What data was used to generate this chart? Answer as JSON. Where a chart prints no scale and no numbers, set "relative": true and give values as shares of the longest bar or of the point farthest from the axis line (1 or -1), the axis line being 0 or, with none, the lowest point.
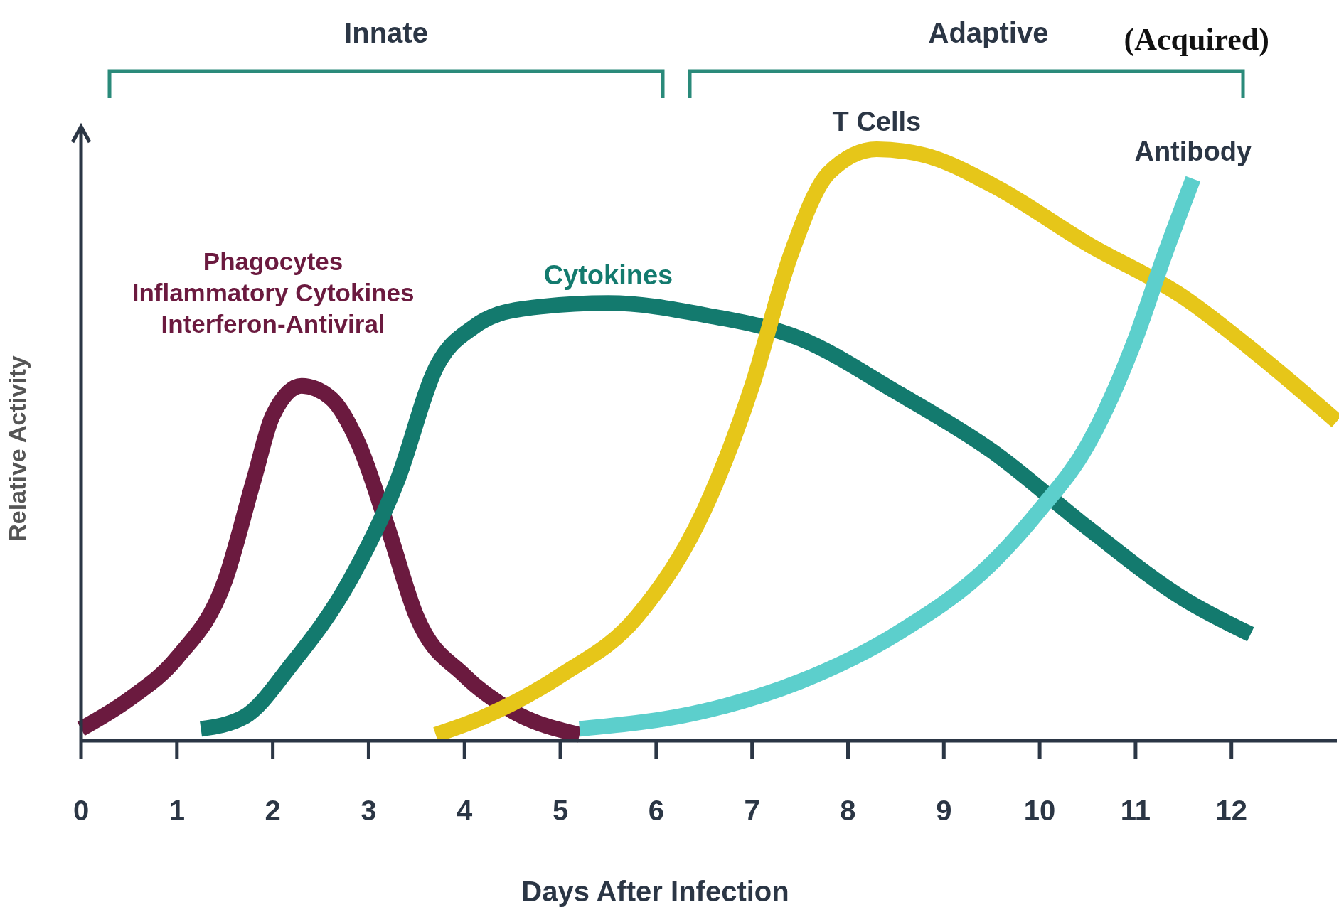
{
  "chart_data": {
    "type": "line",
    "relative": true,
    "xlabel": "Days After Infection",
    "ylabel": "Relative Activity",
    "xlim": [
      0,
      13.1
    ],
    "xticks": [
      0,
      1,
      2,
      3,
      4,
      5,
      6,
      7,
      8,
      9,
      10,
      11,
      12
    ],
    "grid": false,
    "legend": false,
    "marker": "none",
    "line_style": "solid",
    "series": [
      {
        "name": "Phagocytes\nInflammatory Cytokines\nInterferon-Antiviral",
        "color": "#6b1a3f",
        "x": [
          0,
          0.5,
          1,
          1.5,
          1.8,
          2.0,
          2.3,
          2.6,
          2.9,
          3.2,
          3.5,
          4,
          4.5,
          5.2
        ],
        "values": [
          0.02,
          0.07,
          0.14,
          0.27,
          0.44,
          0.55,
          0.6,
          0.58,
          0.5,
          0.36,
          0.21,
          0.11,
          0.05,
          0.01
        ]
      },
      {
        "name": "Cytokines",
        "color": "#137a6e",
        "x": [
          1.25,
          1.7,
          2.2,
          2.8,
          3.3,
          3.7,
          4.1,
          4.6,
          5.5,
          6.5,
          7.5,
          8.5,
          9.5,
          10.5,
          11.5,
          12.2
        ],
        "values": [
          0.02,
          0.04,
          0.13,
          0.27,
          0.44,
          0.63,
          0.7,
          0.73,
          0.74,
          0.72,
          0.68,
          0.59,
          0.49,
          0.36,
          0.24,
          0.18
        ]
      },
      {
        "name": "T Cells",
        "color": "#e6c619",
        "x": [
          3.7,
          4.2,
          5,
          5.8,
          6.5,
          7,
          7.4,
          7.8,
          8.3,
          8.8,
          9.5,
          10.5,
          11.5,
          12.3,
          13.1
        ],
        "values": [
          0.01,
          0.04,
          0.11,
          0.21,
          0.39,
          0.6,
          0.82,
          0.96,
          1.0,
          0.99,
          0.94,
          0.84,
          0.75,
          0.65,
          0.54
        ]
      },
      {
        "name": "Antibody",
        "color": "#5ccfcc",
        "x": [
          5.2,
          6.5,
          7.5,
          8.5,
          9.5,
          10,
          10.5,
          11,
          11.3,
          11.6
        ],
        "values": [
          0.02,
          0.05,
          0.1,
          0.18,
          0.3,
          0.39,
          0.5,
          0.68,
          0.82,
          0.95
        ]
      }
    ],
    "annotations": [
      "Innate",
      "Adaptive",
      "(Acquired)"
    ]
  }
}
